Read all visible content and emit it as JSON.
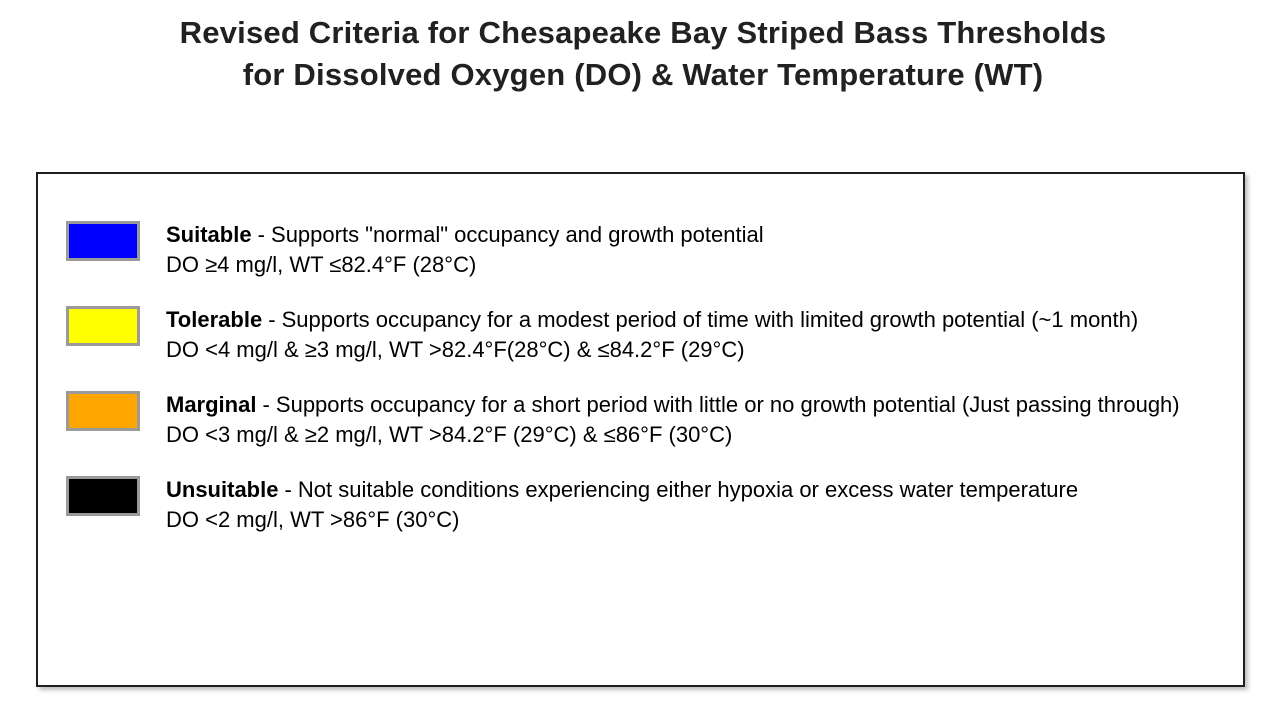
{
  "title": {
    "line1": "Revised Criteria for Chesapeake Bay Striped Bass Thresholds",
    "line2": "for Dissolved Oxygen (DO) & Water Temperature (WT)"
  },
  "colors": {
    "box_border": "#1f1f1f",
    "swatch_border": "#9a9a9a",
    "title_text": "#212121",
    "body_text": "#000000"
  },
  "legend": {
    "entries": [
      {
        "color_name": "blue",
        "color": "#0000ff",
        "label": "Suitable",
        "description": "- Supports \"normal\" occupancy and growth potential",
        "criteria": "DO ≥4 mg/l, WT ≤82.4°F (28°C)"
      },
      {
        "color_name": "yellow",
        "color": "#ffff00",
        "label": "Tolerable",
        "description": "- Supports occupancy for a modest period of time with limited growth potential (~1 month)",
        "criteria": "DO <4 mg/l & ≥3 mg/l, WT >82.4°F(28°C) & ≤84.2°F (29°C)"
      },
      {
        "color_name": "orange",
        "color": "#ffa500",
        "label": "Marginal",
        "description": "- Supports occupancy for a short period with little or no growth potential (Just passing through)",
        "criteria": "DO <3 mg/l & ≥2 mg/l, WT >84.2°F (29°C) & ≤86°F (30°C)"
      },
      {
        "color_name": "black",
        "color": "#000000",
        "label": "Unsuitable",
        "description": "- Not suitable conditions experiencing either hypoxia or excess water temperature",
        "criteria": "DO <2 mg/l, WT >86°F (30°C)"
      }
    ]
  }
}
